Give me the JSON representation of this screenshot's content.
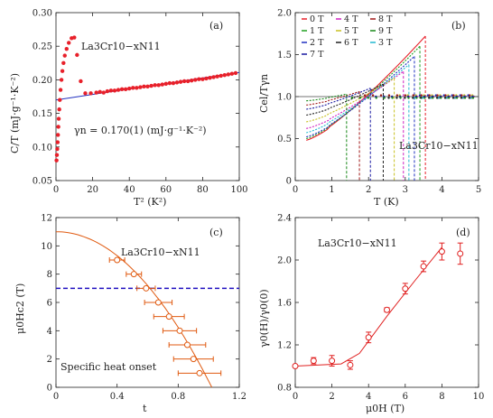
{
  "chart_data": [
    {
      "type": "scatter",
      "panel_label": "(a)",
      "annotation": "La3Cr10−xN11",
      "fit_text": "γn = 0.170(1)  (mJ·g⁻¹·K⁻²)",
      "xlabel": "T² (K²)",
      "ylabel": "C/T  (mJ·g⁻¹·K⁻²)",
      "xlim": [
        0,
        100
      ],
      "ylim": [
        0.05,
        0.3
      ],
      "xticks": [
        "0",
        "20",
        "40",
        "60",
        "80",
        "100"
      ],
      "yticks": [
        "0.05",
        "0.10",
        "0.15",
        "0.20",
        "0.25",
        "0.30"
      ],
      "colors": {
        "points": "#e8202a",
        "fit": "#2030c0"
      },
      "fit_line": {
        "x": [
          0,
          100
        ],
        "y": [
          0.17,
          0.211
        ]
      },
      "points": [
        [
          0.3,
          0.08
        ],
        [
          0.5,
          0.088
        ],
        [
          0.7,
          0.097
        ],
        [
          0.9,
          0.107
        ],
        [
          1.1,
          0.118
        ],
        [
          1.3,
          0.13
        ],
        [
          1.5,
          0.142
        ],
        [
          1.8,
          0.156
        ],
        [
          2.1,
          0.17
        ],
        [
          2.5,
          0.185
        ],
        [
          3.0,
          0.2
        ],
        [
          3.5,
          0.213
        ],
        [
          4.1,
          0.225
        ],
        [
          4.8,
          0.236
        ],
        [
          5.8,
          0.246
        ],
        [
          7.0,
          0.255
        ],
        [
          8.5,
          0.262
        ],
        [
          10.0,
          0.263
        ],
        [
          11.5,
          0.237
        ],
        [
          13.5,
          0.198
        ],
        [
          16,
          0.18
        ],
        [
          19,
          0.18
        ],
        [
          22,
          0.181
        ],
        [
          24,
          0.182
        ],
        [
          26,
          0.181
        ],
        [
          28,
          0.183
        ],
        [
          30,
          0.184
        ],
        [
          32,
          0.184
        ],
        [
          34,
          0.185
        ],
        [
          36,
          0.186
        ],
        [
          38,
          0.186
        ],
        [
          40,
          0.187
        ],
        [
          42,
          0.188
        ],
        [
          44,
          0.188
        ],
        [
          46,
          0.189
        ],
        [
          48,
          0.19
        ],
        [
          50,
          0.19
        ],
        [
          52,
          0.191
        ],
        [
          54,
          0.192
        ],
        [
          56,
          0.192
        ],
        [
          58,
          0.193
        ],
        [
          60,
          0.194
        ],
        [
          62,
          0.195
        ],
        [
          64,
          0.195
        ],
        [
          66,
          0.196
        ],
        [
          68,
          0.197
        ],
        [
          70,
          0.198
        ],
        [
          72,
          0.198
        ],
        [
          74,
          0.199
        ],
        [
          76,
          0.2
        ],
        [
          78,
          0.201
        ],
        [
          80,
          0.201
        ],
        [
          82,
          0.202
        ],
        [
          84,
          0.203
        ],
        [
          86,
          0.204
        ],
        [
          88,
          0.205
        ],
        [
          90,
          0.206
        ],
        [
          92,
          0.207
        ],
        [
          94,
          0.208
        ],
        [
          96,
          0.209
        ],
        [
          98,
          0.21
        ]
      ]
    },
    {
      "type": "line",
      "panel_label": "(b)",
      "annotation": "La3Cr10−xN11",
      "xlabel": "T  (K)",
      "ylabel": "Cel/Tγn",
      "xlim": [
        0,
        5
      ],
      "ylim": [
        0.0,
        2.0
      ],
      "xticks": [
        "0",
        "1",
        "2",
        "3",
        "4",
        "5"
      ],
      "yticks": [
        "0",
        "0.5",
        "1.0",
        "1.5",
        "2.0"
      ],
      "legend": [
        "0 T",
        "4 T",
        "8 T",
        "1 T",
        "5 T",
        "9 T",
        "2 T",
        "6 T",
        "3 T",
        "7 T"
      ],
      "series": [
        {
          "name": "0 T",
          "color": "#e8202a",
          "Tc": 3.55,
          "start": 0.48,
          "peak": 1.72
        },
        {
          "name": "1 T",
          "color": "#20a020",
          "Tc": 3.4,
          "start": 0.5,
          "peak": 1.6
        },
        {
          "name": "2 T",
          "color": "#2030c0",
          "Tc": 3.25,
          "start": 0.52,
          "peak": 1.48
        },
        {
          "name": "3 T",
          "color": "#20b8d0",
          "Tc": 3.1,
          "start": 0.57,
          "peak": 1.38
        },
        {
          "name": "4 T",
          "color": "#d020c0",
          "Tc": 2.95,
          "start": 0.62,
          "peak": 1.3
        },
        {
          "name": "5 T",
          "color": "#c8c020",
          "Tc": 2.7,
          "start": 0.7,
          "peak": 1.22
        },
        {
          "name": "6 T",
          "color": "#202020",
          "Tc": 2.4,
          "start": 0.78,
          "peak": 1.15
        },
        {
          "name": "7 T",
          "color": "#1818a0",
          "Tc": 2.05,
          "start": 0.85,
          "peak": 1.1
        },
        {
          "name": "8 T",
          "color": "#a01818",
          "Tc": 1.75,
          "start": 0.9,
          "peak": 1.06
        },
        {
          "name": "9 T",
          "color": "#188818",
          "Tc": 1.4,
          "start": 0.95,
          "peak": 1.03
        }
      ]
    },
    {
      "type": "scatter",
      "panel_label": "(c)",
      "annotation": "La3Cr10−xN11",
      "note": "Specific heat onset",
      "xlabel": "t",
      "ylabel": "μ0Hc2 (T)",
      "xlim": [
        0,
        1.2
      ],
      "ylim": [
        0,
        12
      ],
      "xticks": [
        "0",
        "0.4",
        "0.8",
        "1.2"
      ],
      "yticks": [
        "0",
        "2",
        "4",
        "6",
        "8",
        "10",
        "12"
      ],
      "colors": {
        "points": "#e05a10",
        "hline": "#2010c0"
      },
      "hline": 7.0,
      "fit": {
        "H0": 11.0,
        "tc": 1.02
      },
      "points": [
        {
          "x": 0.4,
          "y": 9.0,
          "err": 0.05
        },
        {
          "x": 0.51,
          "y": 8.0,
          "err": 0.05
        },
        {
          "x": 0.59,
          "y": 7.0,
          "err": 0.06
        },
        {
          "x": 0.67,
          "y": 6.0,
          "err": 0.09
        },
        {
          "x": 0.74,
          "y": 5.0,
          "err": 0.1
        },
        {
          "x": 0.81,
          "y": 4.0,
          "err": 0.11
        },
        {
          "x": 0.86,
          "y": 3.0,
          "err": 0.12
        },
        {
          "x": 0.9,
          "y": 2.0,
          "err": 0.13
        },
        {
          "x": 0.94,
          "y": 1.0,
          "err": 0.14
        }
      ]
    },
    {
      "type": "scatter",
      "panel_label": "(d)",
      "annotation": "La3Cr10−xN11",
      "xlabel": "μ0H (T)",
      "ylabel": "γ0(H)/γ0(0)",
      "xlim": [
        0,
        10
      ],
      "ylim": [
        0.8,
        2.4
      ],
      "xticks": [
        "0",
        "2",
        "4",
        "6",
        "8",
        "10"
      ],
      "yticks": [
        "0.8",
        "1.2",
        "1.6",
        "2.0",
        "2.4"
      ],
      "colors": {
        "points": "#e02020"
      },
      "points": [
        {
          "x": 0,
          "y": 1.0,
          "err": 0.0
        },
        {
          "x": 1,
          "y": 1.05,
          "err": 0.03
        },
        {
          "x": 2,
          "y": 1.05,
          "err": 0.05
        },
        {
          "x": 3,
          "y": 1.01,
          "err": 0.04
        },
        {
          "x": 4,
          "y": 1.27,
          "err": 0.05
        },
        {
          "x": 5,
          "y": 1.53,
          "err": 0.02
        },
        {
          "x": 6,
          "y": 1.73,
          "err": 0.05
        },
        {
          "x": 7,
          "y": 1.94,
          "err": 0.05
        },
        {
          "x": 8,
          "y": 2.08,
          "err": 0.08
        },
        {
          "x": 9,
          "y": 2.06,
          "err": 0.1
        }
      ],
      "fit": [
        [
          0,
          1.0
        ],
        [
          2.5,
          1.02
        ],
        [
          3.5,
          1.12
        ],
        [
          5,
          1.47
        ],
        [
          6.5,
          1.8
        ],
        [
          8,
          2.12
        ]
      ]
    }
  ]
}
